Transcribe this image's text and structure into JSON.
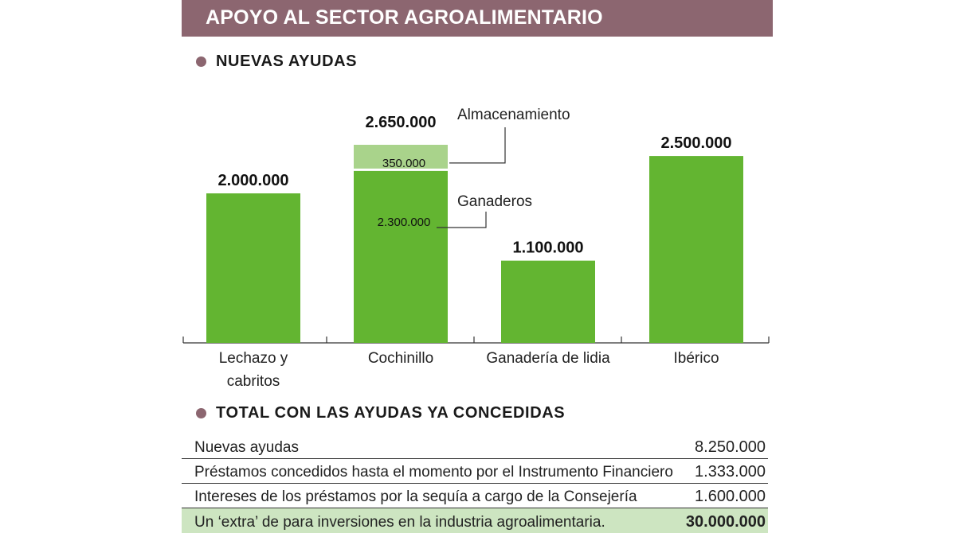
{
  "header": {
    "title": "APOYO AL SECTOR AGROALIMENTARIO"
  },
  "sections": {
    "chart_title": "NUEVAS AYUDAS",
    "table_title": "TOTAL CON LAS AYUDAS YA CONCEDIDAS"
  },
  "colors": {
    "header_bg": "#8c6670",
    "bar": "#63b531",
    "bar_light": "#a9d38b",
    "highlight_row": "#cde5c1"
  },
  "chart_data": {
    "type": "bar",
    "title": "NUEVAS AYUDAS",
    "categories": [
      [
        "Lechazo y",
        "cabritos"
      ],
      [
        "Cochinillo"
      ],
      [
        "Ganadería de lidia"
      ],
      [
        "Ibérico"
      ]
    ],
    "values": [
      2000000,
      2650000,
      1100000,
      2500000
    ],
    "value_labels": [
      "2.000.000",
      "2.650.000",
      "1.100.000",
      "2.500.000"
    ],
    "stacked_breakdown": {
      "category_index": 1,
      "segments": [
        {
          "name": "Ganaderos",
          "value": 2300000,
          "label": "2.300.000"
        },
        {
          "name": "Almacenamiento",
          "value": 350000,
          "label": "350.000"
        }
      ]
    },
    "ylim": [
      0,
      2650000
    ],
    "grid": false,
    "legend": "none"
  },
  "table": {
    "rows": [
      {
        "label": "Nuevas ayudas",
        "value": "8.250.000",
        "highlight": false
      },
      {
        "label": "Préstamos concedidos hasta el momento por  el Instrumento Financiero",
        "value": "1.333.000",
        "highlight": false
      },
      {
        "label": "Intereses de los préstamos por la sequía a cargo de la Consejería",
        "value": "1.600.000",
        "highlight": false
      },
      {
        "label": "Un ‘extra’ de para inversiones en la industria agroalimentaria.",
        "value": "30.000.000",
        "highlight": true
      }
    ]
  }
}
